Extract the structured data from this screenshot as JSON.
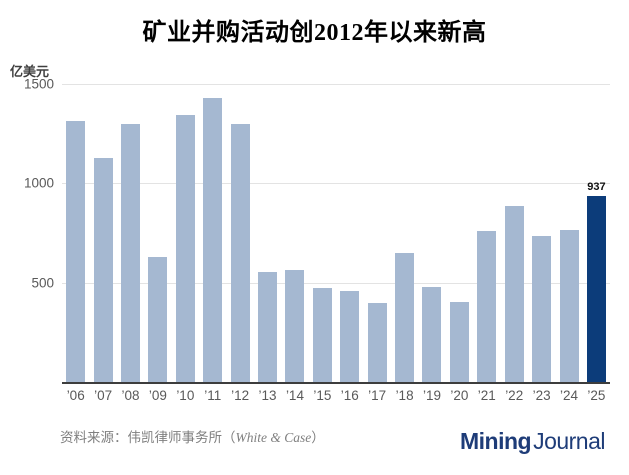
{
  "title": "矿业并购活动创2012年以来新高",
  "y_axis": {
    "unit_label": "亿美元"
  },
  "chart_data": {
    "type": "bar",
    "title": "矿业并购活动创2012年以来新高",
    "categories": [
      "’06",
      "’07",
      "’08",
      "’09",
      "’10",
      "’11",
      "’12",
      "’13",
      "’14",
      "’15",
      "’16",
      "’17",
      "’18",
      "’19",
      "’20",
      "’21",
      "’22",
      "’23",
      "’24",
      "’25"
    ],
    "values": [
      1315,
      1130,
      1300,
      630,
      1345,
      1430,
      1300,
      555,
      565,
      475,
      460,
      400,
      650,
      480,
      405,
      760,
      885,
      735,
      765,
      937
    ],
    "xlabel": "",
    "ylabel": "亿美元",
    "ylim": [
      0,
      1500
    ],
    "yticks": [
      500,
      1000,
      1500
    ],
    "grid": true,
    "legend": false,
    "bar_color": "#a5b8d1",
    "highlight": {
      "index": 19,
      "color": "#0c3c7a",
      "label": "937"
    }
  },
  "footer": {
    "source_prefix": "资料来源：伟凯律师事务所（",
    "source_latin": "White & Case",
    "source_suffix": "）",
    "logo_bold": "Mining",
    "logo_light": "Journal",
    "logo_color": "#1e3c78"
  }
}
